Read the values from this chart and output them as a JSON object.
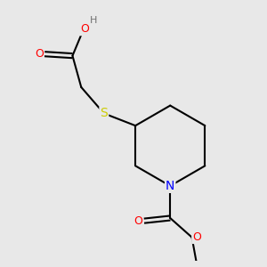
{
  "background_color": "#e8e8e8",
  "bond_color": "#000000",
  "bond_width": 1.5,
  "atom_colors": {
    "O": "#ff0000",
    "N": "#0000ff",
    "S": "#cccc00",
    "H": "#707070",
    "C": "#000000"
  },
  "font_size": 9,
  "figsize": [
    3.0,
    3.0
  ],
  "dpi": 100
}
